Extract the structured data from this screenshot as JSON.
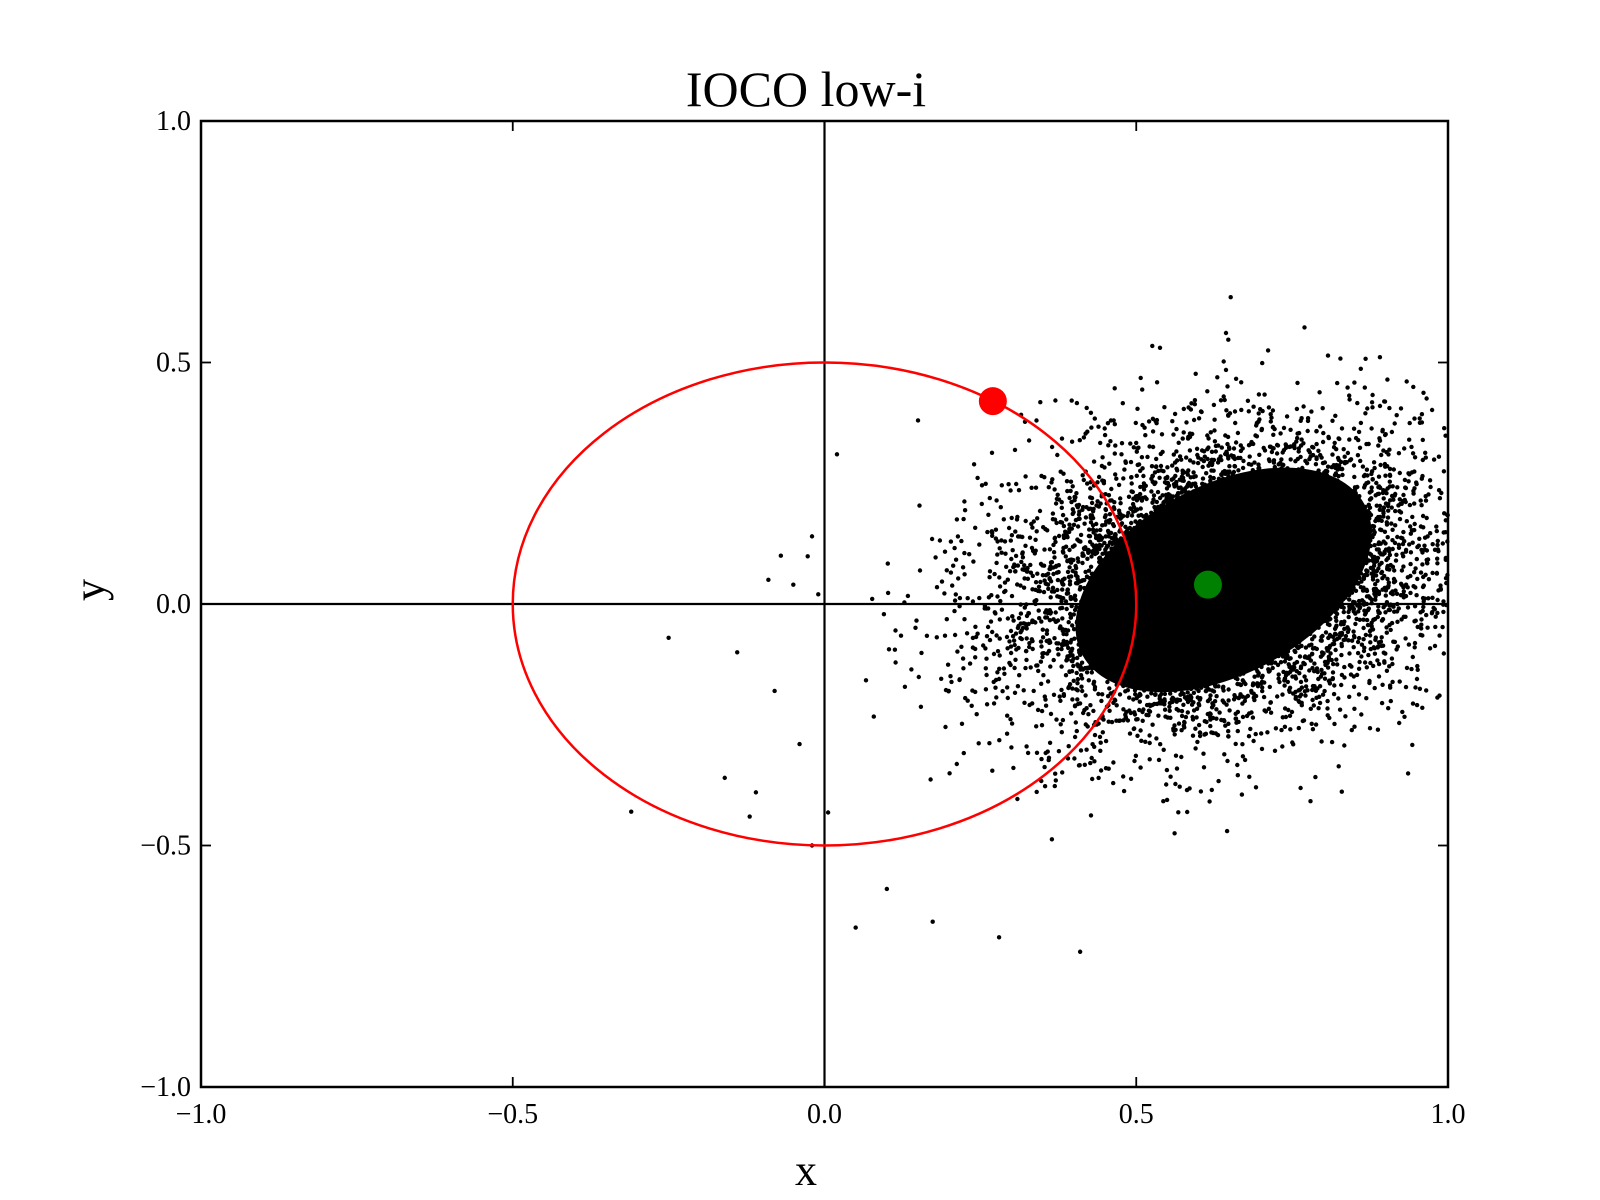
{
  "chart_data": {
    "type": "scatter",
    "title": "IOCO low-i",
    "xlabel": "x",
    "ylabel": "y",
    "xlim": [
      -1.0,
      1.0
    ],
    "ylim": [
      -1.0,
      1.0
    ],
    "xticks": [
      {
        "value": -1.0,
        "label": "−1.0"
      },
      {
        "value": -0.5,
        "label": "−0.5"
      },
      {
        "value": 0.0,
        "label": "0.0"
      },
      {
        "value": 0.5,
        "label": "0.5"
      },
      {
        "value": 1.0,
        "label": "1.0"
      }
    ],
    "yticks": [
      {
        "value": -1.0,
        "label": "−1.0"
      },
      {
        "value": -0.5,
        "label": "−0.5"
      },
      {
        "value": 0.0,
        "label": "0.0"
      },
      {
        "value": 0.5,
        "label": "0.5"
      },
      {
        "value": 1.0,
        "label": "1.0"
      }
    ],
    "grid": false,
    "reference_lines": {
      "x": 0.0,
      "y": 0.0,
      "color": "#000000"
    },
    "circle": {
      "center": [
        0.0,
        0.0
      ],
      "radius": 0.5,
      "color": "#ff0000"
    },
    "markers": [
      {
        "x": 0.27,
        "y": 0.42,
        "color": "#ff0000"
      },
      {
        "x": 0.615,
        "y": 0.04,
        "color": "#008000"
      }
    ],
    "scatter_cloud": {
      "color": "#000000",
      "center": [
        0.64,
        0.05
      ],
      "sigma_major": 0.19,
      "sigma_minor": 0.145,
      "angle_deg": 28,
      "x_range": [
        -0.32,
        1.0
      ],
      "y_range": [
        -0.72,
        0.7
      ]
    },
    "outlier_points": [
      {
        "x": -0.31,
        "y": -0.43
      },
      {
        "x": -0.25,
        "y": -0.07
      },
      {
        "x": -0.14,
        "y": -0.1
      },
      {
        "x": -0.16,
        "y": -0.36
      },
      {
        "x": -0.11,
        "y": -0.39
      },
      {
        "x": -0.12,
        "y": -0.44
      },
      {
        "x": -0.09,
        "y": 0.05
      },
      {
        "x": -0.07,
        "y": 0.1
      },
      {
        "x": -0.05,
        "y": 0.04
      },
      {
        "x": -0.02,
        "y": 0.14
      },
      {
        "x": -0.01,
        "y": 0.02
      },
      {
        "x": -0.08,
        "y": -0.18
      },
      {
        "x": -0.04,
        "y": -0.29
      },
      {
        "x": -0.02,
        "y": -0.5
      },
      {
        "x": 0.05,
        "y": -0.67
      },
      {
        "x": 0.02,
        "y": 0.31
      },
      {
        "x": 0.15,
        "y": 0.38
      },
      {
        "x": 0.28,
        "y": -0.69
      },
      {
        "x": 0.41,
        "y": -0.72
      },
      {
        "x": 0.1,
        "y": -0.59
      }
    ]
  }
}
